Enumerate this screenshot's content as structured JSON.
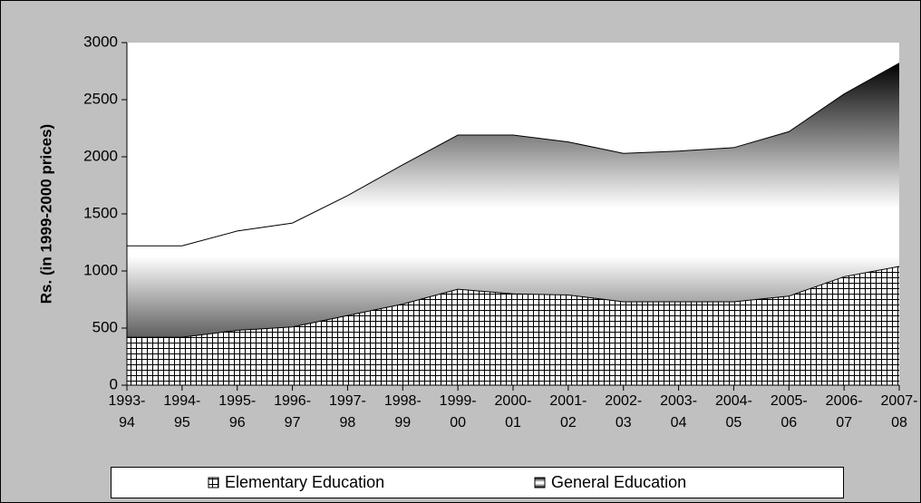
{
  "chart_data": {
    "type": "area",
    "ylabel": "Rs. (in 1999-2000 prices)",
    "categories": [
      "1993-94",
      "1994-95",
      "1995-96",
      "1996-97",
      "1997-98",
      "1998-99",
      "1999-00",
      "2000-01",
      "2001-02",
      "2002-03",
      "2003-04",
      "2004-05",
      "2005-06",
      "2006-07",
      "2007-08"
    ],
    "series": [
      {
        "name": "Elementary Education",
        "values": [
          420,
          420,
          480,
          510,
          610,
          710,
          840,
          800,
          790,
          730,
          730,
          730,
          780,
          950,
          1040
        ]
      },
      {
        "name": "General Education",
        "values": [
          1220,
          1220,
          1350,
          1420,
          1660,
          1930,
          2190,
          2190,
          2130,
          2030,
          2050,
          2080,
          2220,
          2550,
          2820
        ]
      }
    ],
    "ylim": [
      0,
      3000
    ],
    "yticks": [
      0,
      500,
      1000,
      1500,
      2000,
      2500,
      3000
    ]
  }
}
